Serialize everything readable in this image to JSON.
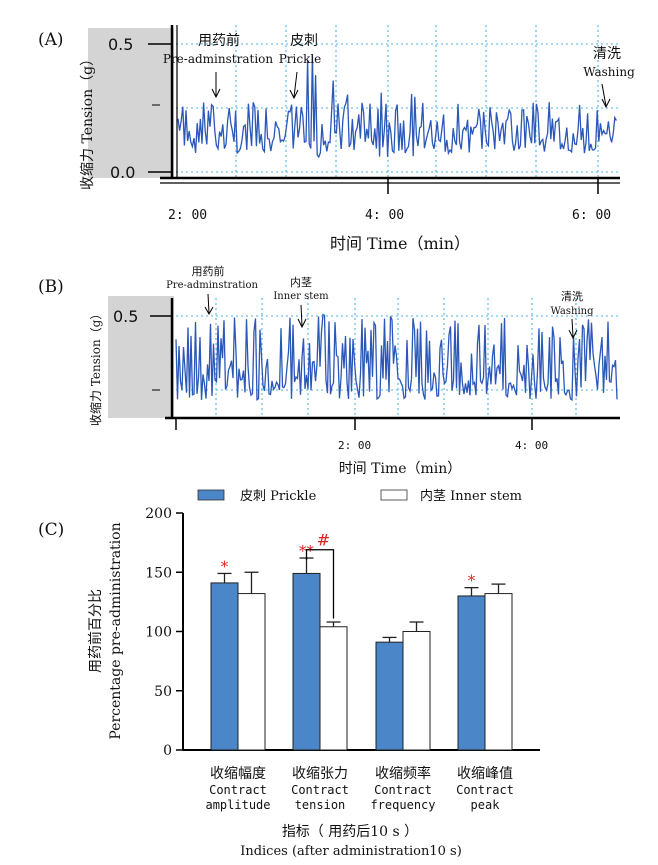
{
  "panel_a": {
    "label": "(A)",
    "y_label": "收缩力 Tension（g）",
    "y_ticks": [
      "0.5",
      "0.0"
    ],
    "x_ticks": [
      "2: 00",
      "4: 00",
      "6: 00"
    ],
    "x_label": "时间  Time（min）",
    "annotations": [
      {
        "cn": "用药前",
        "en": "Pre-adminstration"
      },
      {
        "cn": "皮刺",
        "en": "Prickle"
      },
      {
        "cn": "清洗",
        "en": "Washing"
      }
    ]
  },
  "panel_b": {
    "label": "(B)",
    "y_label": "收缩力 Tension（g）",
    "y_ticks": [
      "0.5"
    ],
    "x_ticks": [
      "2: 00",
      "4: 00"
    ],
    "x_label": "时间  Time（min）",
    "annotations": [
      {
        "cn": "用药前",
        "en": "Pre-adminstration"
      },
      {
        "cn": "内茎",
        "en": "Inner stem"
      },
      {
        "cn": "清洗",
        "en": "Washing"
      }
    ]
  },
  "panel_c": {
    "label": "(C)",
    "y_label_cn": "用药前百分比",
    "y_label_en": "Percentage pre-administration",
    "y_ticks": [
      "0",
      "50",
      "100",
      "150",
      "200"
    ],
    "x_label_cn": "指标（ 用药后10 s ）",
    "x_label_en": "Indices (after administration10 s)",
    "legend": [
      "皮刺  Prickle",
      "内茎 Inner stem"
    ],
    "sig_hash": "#"
  },
  "chart_data": [
    {
      "type": "bar",
      "ylim": [
        0,
        200
      ],
      "categories": [
        {
          "cn": "收缩幅度",
          "en1": "Contract",
          "en2": "amplitude"
        },
        {
          "cn": "收缩张力",
          "en1": "Contract",
          "en2": "tension"
        },
        {
          "cn": "收缩频率",
          "en1": "Contract",
          "en2": "frequency"
        },
        {
          "cn": "收缩峰值",
          "en1": "Contract",
          "en2": "peak"
        }
      ],
      "series": [
        {
          "name": "皮刺  Prickle",
          "color": "#4a86c8",
          "values": [
            141,
            149,
            91,
            130
          ],
          "errors": [
            8,
            13,
            4,
            7
          ],
          "stars": [
            "*",
            "**",
            "",
            "*"
          ]
        },
        {
          "name": "内茎 Inner stem",
          "color": "#ffffff",
          "values": [
            132,
            104,
            100,
            132
          ],
          "errors": [
            18,
            4,
            8,
            8
          ],
          "stars": [
            "",
            "",
            "",
            ""
          ]
        }
      ]
    }
  ],
  "colors": {
    "trace": "#2a57b8",
    "grid": "#4fb3e6",
    "axis_bg": "#d4d4d4",
    "sig": "#e0261e"
  }
}
